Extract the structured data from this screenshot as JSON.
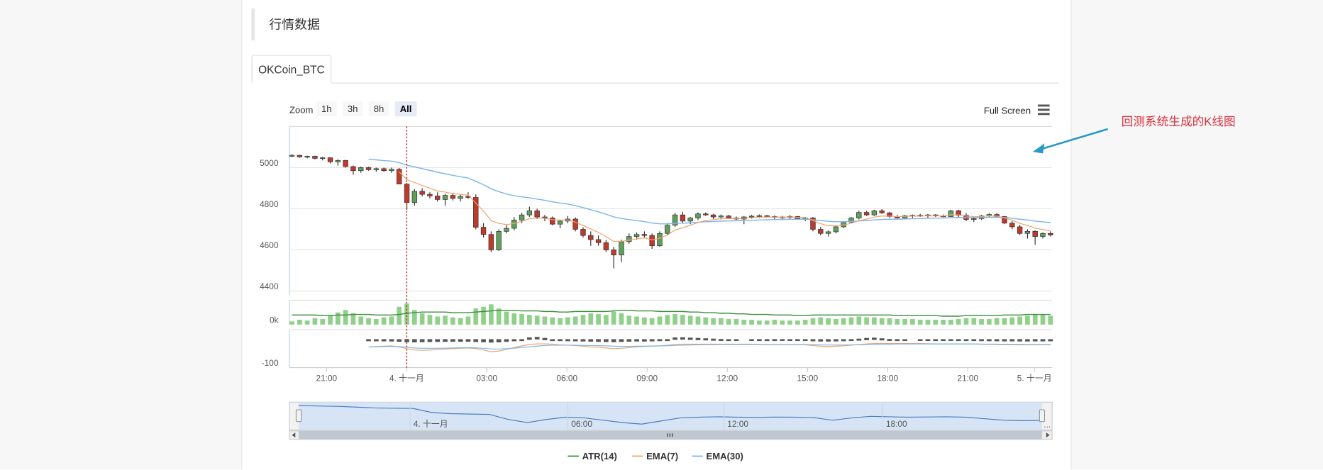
{
  "section": {
    "title": "行情数据"
  },
  "tabs": [
    {
      "label": "OKCoin_BTC"
    }
  ],
  "toolbar": {
    "zoom_label": "Zoom",
    "zoom_buttons": [
      "1h",
      "3h",
      "8h",
      "All"
    ],
    "zoom_active": "All",
    "fullscreen_label": "Full Screen",
    "menu_icon": "hamburger-menu-icon"
  },
  "annotation": {
    "text": "回测系统生成的K线图",
    "color": "#e02d3c",
    "arrow_color": "#2b9ac4",
    "arrow_icon": "arrow-icon"
  },
  "legend": [
    {
      "name": "ATR(14)",
      "color": "#3f8f3f"
    },
    {
      "name": "EMA(7)",
      "color": "#f0a36b"
    },
    {
      "name": "EMA(30)",
      "color": "#7cb5ec"
    }
  ],
  "navigator": {
    "x_labels": [
      "4. 十一月",
      "06:00",
      "12:00",
      "18:00"
    ],
    "scroll_icon": "scroll-grip-icon",
    "left_arrow_icon": "scroll-left-icon",
    "right_arrow_icon": "scroll-right-icon",
    "ellipsis": "..."
  },
  "crosshair": {
    "x_label": "4. 十一月",
    "color": "#c0392b"
  },
  "colors": {
    "up": "#5ea05b",
    "down": "#c0392b",
    "volume": "#90d08a",
    "macd_bar": "#555555",
    "grid": "#e6e6e6",
    "navigator_fill": "#d6e4f5",
    "navigator_line": "#4a7fc1"
  },
  "chart_data": {
    "type": "candlestick",
    "x_tick_labels": [
      "21:00",
      "4. 十一月",
      "03:00",
      "06:00",
      "09:00",
      "12:00",
      "15:00",
      "18:00",
      "21:00",
      "5. 十一月"
    ],
    "price_axis": {
      "ticks": [
        4400,
        4600,
        4800,
        5000
      ],
      "ylim": [
        4380,
        5200
      ]
    },
    "volume_axis": {
      "ticks": [
        "0k"
      ]
    },
    "indicator_axis": {
      "ticks": [
        -100
      ],
      "ylim": [
        -160,
        60
      ]
    },
    "candles": [
      [
        5055,
        5065,
        5050,
        5060
      ],
      [
        5060,
        5062,
        5048,
        5052
      ],
      [
        5052,
        5058,
        5045,
        5055
      ],
      [
        5055,
        5058,
        5040,
        5045
      ],
      [
        5045,
        5052,
        5035,
        5048
      ],
      [
        5048,
        5050,
        5020,
        5028
      ],
      [
        5028,
        5040,
        5010,
        5035
      ],
      [
        5035,
        5038,
        5000,
        5005
      ],
      [
        5005,
        5010,
        4965,
        4985
      ],
      [
        4985,
        5005,
        4975,
        5000
      ],
      [
        5000,
        5004,
        4985,
        4990
      ],
      [
        4990,
        5000,
        4980,
        4995
      ],
      [
        4995,
        5000,
        4980,
        4985
      ],
      [
        4985,
        5000,
        4975,
        4992
      ],
      [
        4992,
        4998,
        4920,
        4920
      ],
      [
        4920,
        4925,
        4795,
        4830
      ],
      [
        4830,
        4895,
        4815,
        4885
      ],
      [
        4885,
        4900,
        4860,
        4870
      ],
      [
        4870,
        4880,
        4850,
        4862
      ],
      [
        4862,
        4880,
        4835,
        4845
      ],
      [
        4845,
        4872,
        4815,
        4865
      ],
      [
        4865,
        4878,
        4840,
        4850
      ],
      [
        4850,
        4870,
        4835,
        4860
      ],
      [
        4860,
        4880,
        4848,
        4855
      ],
      [
        4855,
        4870,
        4700,
        4710
      ],
      [
        4710,
        4730,
        4660,
        4675
      ],
      [
        4675,
        4690,
        4590,
        4600
      ],
      [
        4600,
        4700,
        4595,
        4690
      ],
      [
        4690,
        4720,
        4680,
        4705
      ],
      [
        4705,
        4760,
        4695,
        4745
      ],
      [
        4745,
        4780,
        4730,
        4770
      ],
      [
        4770,
        4810,
        4760,
        4790
      ],
      [
        4790,
        4800,
        4750,
        4760
      ],
      [
        4760,
        4770,
        4740,
        4755
      ],
      [
        4755,
        4762,
        4720,
        4725
      ],
      [
        4725,
        4745,
        4705,
        4740
      ],
      [
        4740,
        4765,
        4730,
        4750
      ],
      [
        4750,
        4758,
        4690,
        4700
      ],
      [
        4700,
        4710,
        4660,
        4670
      ],
      [
        4670,
        4690,
        4620,
        4650
      ],
      [
        4650,
        4670,
        4620,
        4635
      ],
      [
        4635,
        4648,
        4590,
        4600
      ],
      [
        4600,
        4615,
        4510,
        4575
      ],
      [
        4575,
        4650,
        4540,
        4640
      ],
      [
        4640,
        4680,
        4630,
        4665
      ],
      [
        4665,
        4685,
        4650,
        4675
      ],
      [
        4675,
        4690,
        4660,
        4670
      ],
      [
        4670,
        4680,
        4605,
        4620
      ],
      [
        4620,
        4690,
        4615,
        4680
      ],
      [
        4680,
        4730,
        4670,
        4720
      ],
      [
        4720,
        4780,
        4712,
        4770
      ],
      [
        4770,
        4785,
        4730,
        4740
      ],
      [
        4740,
        4760,
        4725,
        4755
      ],
      [
        4755,
        4782,
        4745,
        4775
      ],
      [
        4775,
        4782,
        4765,
        4770
      ],
      [
        4770,
        4775,
        4750,
        4760
      ],
      [
        4760,
        4772,
        4748,
        4765
      ],
      [
        4765,
        4770,
        4750,
        4755
      ],
      [
        4755,
        4762,
        4745,
        4750
      ],
      [
        4750,
        4765,
        4725,
        4760
      ],
      [
        4760,
        4770,
        4752,
        4764
      ],
      [
        4764,
        4772,
        4755,
        4766
      ],
      [
        4766,
        4770,
        4758,
        4762
      ],
      [
        4762,
        4768,
        4750,
        4758
      ],
      [
        4758,
        4766,
        4745,
        4760
      ],
      [
        4760,
        4770,
        4750,
        4762
      ],
      [
        4762,
        4765,
        4748,
        4752
      ],
      [
        4752,
        4760,
        4740,
        4755
      ],
      [
        4755,
        4760,
        4690,
        4700
      ],
      [
        4700,
        4712,
        4670,
        4680
      ],
      [
        4680,
        4695,
        4665,
        4688
      ],
      [
        4688,
        4720,
        4680,
        4712
      ],
      [
        4712,
        4740,
        4705,
        4735
      ],
      [
        4735,
        4760,
        4728,
        4755
      ],
      [
        4755,
        4790,
        4748,
        4782
      ],
      [
        4782,
        4790,
        4765,
        4770
      ],
      [
        4770,
        4795,
        4765,
        4790
      ],
      [
        4790,
        4798,
        4775,
        4780
      ],
      [
        4780,
        4785,
        4755,
        4762
      ],
      [
        4762,
        4770,
        4750,
        4755
      ],
      [
        4755,
        4770,
        4748,
        4766
      ],
      [
        4766,
        4772,
        4755,
        4768
      ],
      [
        4768,
        4775,
        4760,
        4765
      ],
      [
        4765,
        4775,
        4755,
        4770
      ],
      [
        4770,
        4774,
        4760,
        4765
      ],
      [
        4765,
        4772,
        4758,
        4762
      ],
      [
        4762,
        4795,
        4760,
        4790
      ],
      [
        4790,
        4795,
        4760,
        4768
      ],
      [
        4768,
        4778,
        4740,
        4748
      ],
      [
        4748,
        4760,
        4735,
        4752
      ],
      [
        4752,
        4770,
        4745,
        4765
      ],
      [
        4765,
        4778,
        4760,
        4772
      ],
      [
        4772,
        4780,
        4758,
        4762
      ],
      [
        4762,
        4765,
        4725,
        4730
      ],
      [
        4730,
        4740,
        4700,
        4712
      ],
      [
        4712,
        4722,
        4672,
        4680
      ],
      [
        4680,
        4700,
        4655,
        4690
      ],
      [
        4690,
        4695,
        4625,
        4665
      ],
      [
        4665,
        4685,
        4655,
        4680
      ],
      [
        4680,
        4690,
        4665,
        4672
      ]
    ],
    "volume": [
      4,
      6,
      5,
      8,
      7,
      12,
      15,
      18,
      14,
      10,
      8,
      7,
      9,
      10,
      22,
      26,
      18,
      14,
      12,
      10,
      11,
      9,
      8,
      10,
      20,
      22,
      25,
      20,
      16,
      14,
      13,
      12,
      11,
      10,
      9,
      8,
      9,
      10,
      12,
      14,
      13,
      12,
      16,
      14,
      11,
      10,
      9,
      8,
      10,
      12,
      13,
      12,
      11,
      10,
      9,
      8,
      8,
      7,
      7,
      6,
      6,
      5,
      5,
      6,
      5,
      5,
      5,
      6,
      8,
      9,
      8,
      7,
      8,
      9,
      10,
      9,
      9,
      8,
      8,
      7,
      7,
      7,
      6,
      6,
      6,
      6,
      6,
      7,
      8,
      8,
      7,
      7,
      8,
      8,
      9,
      10,
      11,
      12,
      12,
      11
    ],
    "atr": [
      12,
      12,
      12,
      12,
      11,
      11,
      12,
      12,
      13,
      13,
      13,
      12,
      12,
      12,
      13,
      15,
      16,
      17,
      17,
      17,
      17,
      16,
      16,
      16,
      17,
      18,
      19,
      20,
      20,
      20,
      19,
      19,
      19,
      18,
      18,
      17,
      17,
      18,
      18,
      18,
      18,
      18,
      19,
      20,
      20,
      19,
      19,
      19,
      18,
      18,
      18,
      18,
      17,
      17,
      16,
      16,
      15,
      15,
      14,
      14,
      13,
      13,
      13,
      12,
      12,
      12,
      11,
      11,
      12,
      12,
      12,
      12,
      12,
      12,
      12,
      12,
      12,
      12,
      12,
      11,
      11,
      11,
      11,
      11,
      11,
      10,
      10,
      10,
      11,
      11,
      11,
      11,
      11,
      12,
      12,
      12,
      13,
      13,
      13,
      13
    ],
    "macd_hist": [
      0,
      0,
      0,
      0,
      0,
      0,
      0,
      0,
      0,
      0,
      -8,
      -10,
      -12,
      -14,
      -20,
      -30,
      -34,
      -30,
      -26,
      -24,
      -22,
      -20,
      -20,
      -20,
      -25,
      -32,
      -40,
      -34,
      -22,
      -10,
      5,
      15,
      18,
      12,
      4,
      -5,
      -8,
      -10,
      -14,
      -18,
      -22,
      -26,
      -30,
      -24,
      -18,
      -14,
      -16,
      -12,
      -6,
      5,
      15,
      16,
      14,
      12,
      10,
      8,
      6,
      4,
      2,
      0,
      -2,
      -4,
      -4,
      -3,
      -2,
      -2,
      -2,
      -3,
      -10,
      -15,
      -16,
      -12,
      -8,
      -4,
      8,
      12,
      14,
      10,
      6,
      4,
      2,
      0,
      -2,
      -3,
      -4,
      -3,
      -2,
      -3,
      -4,
      -4,
      -6,
      -8,
      -10,
      -12,
      -12,
      -14,
      -14,
      -12,
      -12,
      -10
    ],
    "macd_ema7": [
      null,
      null,
      null,
      null,
      null,
      null,
      null,
      null,
      null,
      null,
      -40,
      -38,
      -36,
      -34,
      -40,
      -50,
      -58,
      -60,
      -58,
      -55,
      -52,
      -50,
      -48,
      -46,
      -50,
      -58,
      -68,
      -64,
      -54,
      -44,
      -34,
      -26,
      -22,
      -22,
      -24,
      -28,
      -30,
      -32,
      -36,
      -40,
      -42,
      -46,
      -50,
      -48,
      -44,
      -40,
      -38,
      -36,
      -34,
      -30,
      -26,
      -24,
      -24,
      -24,
      -24,
      -24,
      -24,
      -24,
      -24,
      -24,
      -24,
      -25,
      -26,
      -26,
      -26,
      -26,
      -26,
      -28,
      -32,
      -36,
      -38,
      -36,
      -34,
      -30,
      -26,
      -22,
      -20,
      -20,
      -20,
      -20,
      -20,
      -20,
      -20,
      -21,
      -22,
      -22,
      -22,
      -22,
      -23,
      -23,
      -24,
      -25,
      -26,
      -27,
      -28,
      -28,
      -28,
      -28,
      -28,
      -28
    ],
    "macd_ema30": [
      null,
      null,
      null,
      null,
      null,
      null,
      null,
      null,
      null,
      null,
      -40,
      -39,
      -38,
      -37,
      -38,
      -42,
      -46,
      -48,
      -48,
      -48,
      -47,
      -46,
      -45,
      -44,
      -45,
      -48,
      -52,
      -52,
      -50,
      -47,
      -43,
      -39,
      -35,
      -32,
      -30,
      -30,
      -30,
      -30,
      -31,
      -32,
      -33,
      -34,
      -36,
      -37,
      -37,
      -36,
      -36,
      -35,
      -34,
      -33,
      -31,
      -30,
      -29,
      -28,
      -27,
      -27,
      -26,
      -26,
      -26,
      -26,
      -26,
      -26,
      -26,
      -26,
      -26,
      -26,
      -26,
      -26,
      -27,
      -28,
      -29,
      -29,
      -29,
      -28,
      -27,
      -26,
      -25,
      -24,
      -24,
      -23,
      -23,
      -23,
      -23,
      -23,
      -23,
      -23,
      -23,
      -23,
      -23,
      -23,
      -24,
      -24,
      -24,
      -25,
      -25,
      -25,
      -26,
      -26,
      -26,
      -26
    ],
    "ema7_start": 14,
    "ema30_start": 10,
    "crosshair_index": 16,
    "navigator_values": [
      5060,
      5050,
      5040,
      5020,
      5000,
      4990,
      4985,
      4880,
      4850,
      4840,
      4830,
      4700,
      4620,
      4700,
      4760,
      4740,
      4680,
      4620,
      4580,
      4660,
      4740,
      4760,
      4770,
      4760,
      4755,
      4762,
      4760,
      4750,
      4680,
      4740,
      4780,
      4770,
      4760,
      4765,
      4770,
      4760,
      4720,
      4680,
      4670,
      4675
    ]
  }
}
